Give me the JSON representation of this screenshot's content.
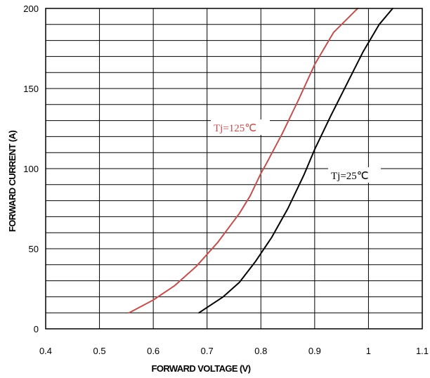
{
  "chart_data": {
    "type": "line",
    "xlabel": "FORWARD VOLTAGE (V)",
    "ylabel": "FORWARD CURRENT (A)",
    "xlim": [
      0.4,
      1.1
    ],
    "ylim": [
      0,
      200
    ],
    "x_ticks": [
      "0.4",
      "0.5",
      "0.6",
      "0.7",
      "0.8",
      "0.9",
      "1",
      "1.1"
    ],
    "y_ticks": [
      "0",
      "50",
      "100",
      "150",
      "200"
    ],
    "x_tick_values": [
      0.4,
      0.5,
      0.6,
      0.7,
      0.8,
      0.9,
      1.0,
      1.1
    ],
    "y_tick_values": [
      0,
      50,
      100,
      150,
      200
    ],
    "grid": true,
    "series": [
      {
        "name": "Tj=125℃",
        "color": "#c0504d",
        "x": [
          0.555,
          0.6,
          0.64,
          0.68,
          0.72,
          0.76,
          0.78,
          0.8,
          0.81,
          0.84,
          0.87,
          0.9,
          0.935,
          0.98
        ],
        "y": [
          10,
          18,
          27,
          39,
          54,
          72,
          83,
          97,
          103,
          122,
          143,
          165,
          185,
          200
        ]
      },
      {
        "name": "Tj=25℃",
        "color": "#000000",
        "x": [
          0.685,
          0.73,
          0.76,
          0.79,
          0.82,
          0.85,
          0.88,
          0.9,
          0.93,
          0.96,
          0.99,
          1.02,
          1.045
        ],
        "y": [
          10,
          20,
          29,
          42,
          57,
          75,
          96,
          112,
          133,
          153,
          173,
          190,
          200
        ]
      }
    ],
    "annotations": [
      {
        "text": "Tj=125℃",
        "color": "#c0504d"
      },
      {
        "text": "Tj=25℃",
        "color": "#000000"
      }
    ]
  }
}
